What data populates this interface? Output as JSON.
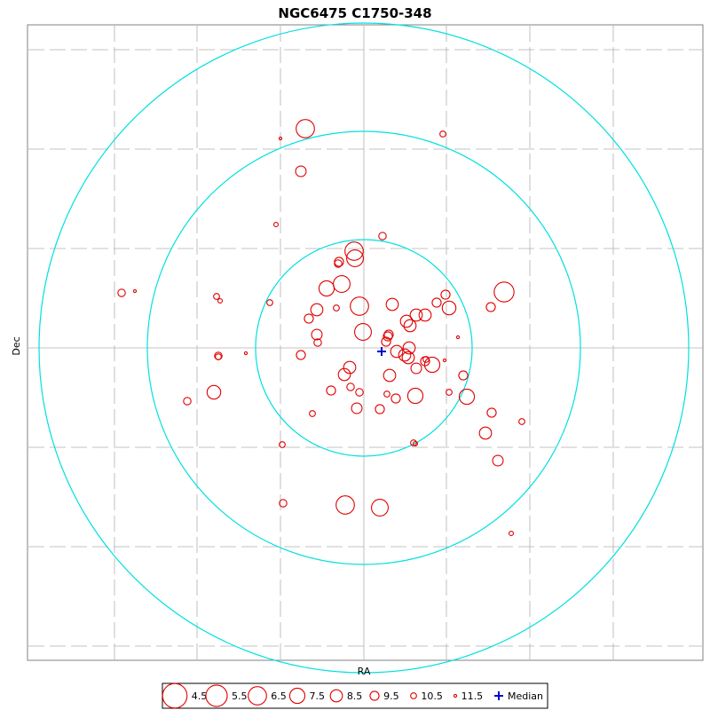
{
  "chart_data": {
    "type": "scatter",
    "title": "NGC6475  C1750-348",
    "xlabel": "RA",
    "ylabel": "Dec",
    "grid": true,
    "legend_placement": "bottom",
    "colors": {
      "stars": "#e00000",
      "rings": "#00e0e0",
      "median": "#0000cc",
      "grid": "#b0b0b0",
      "frame": "#808080"
    },
    "median": {
      "x": 20,
      "y": -4,
      "label": "Median"
    },
    "rings": [
      {
        "name": "",
        "radius": 122
      },
      {
        "name": "",
        "radius": 244
      },
      {
        "name": "",
        "radius": 366
      }
    ],
    "legend": [
      {
        "label": "4.5",
        "mag": 4.5
      },
      {
        "label": "5.5",
        "mag": 5.5
      },
      {
        "label": "6.5",
        "mag": 6.5
      },
      {
        "label": "7.5",
        "mag": 7.5
      },
      {
        "label": "8.5",
        "mag": 8.5
      },
      {
        "label": "9.5",
        "mag": 9.5
      },
      {
        "label": "10.5",
        "mag": 10.5
      },
      {
        "label": "11.5",
        "mag": 11.5
      }
    ],
    "stars": [
      {
        "x": -66,
        "y": 247,
        "mag": 6.5
      },
      {
        "x": -94,
        "y": 236,
        "mag": 11.5
      },
      {
        "x": 89,
        "y": 241,
        "mag": 10.5
      },
      {
        "x": -71,
        "y": 199,
        "mag": 9.0
      },
      {
        "x": -99,
        "y": 139,
        "mag": 11.0
      },
      {
        "x": 21,
        "y": 126,
        "mag": 10.0
      },
      {
        "x": -11,
        "y": 109,
        "mag": 6.5
      },
      {
        "x": -10,
        "y": 101,
        "mag": 7.0
      },
      {
        "x": -28,
        "y": 97,
        "mag": 9.5
      },
      {
        "x": -29,
        "y": 95,
        "mag": 10.0
      },
      {
        "x": 158,
        "y": 63,
        "mag": 6.0
      },
      {
        "x": -273,
        "y": 62,
        "mag": 10.0
      },
      {
        "x": -258,
        "y": 64,
        "mag": 11.5
      },
      {
        "x": -25,
        "y": 72,
        "mag": 7.0
      },
      {
        "x": -42,
        "y": 67,
        "mag": 7.5
      },
      {
        "x": 92,
        "y": 60,
        "mag": 9.5
      },
      {
        "x": -166,
        "y": 58,
        "mag": 10.5
      },
      {
        "x": -162,
        "y": 53,
        "mag": 11.0
      },
      {
        "x": -106,
        "y": 51,
        "mag": 10.5
      },
      {
        "x": 82,
        "y": 51,
        "mag": 9.5
      },
      {
        "x": -5,
        "y": 47,
        "mag": 6.5
      },
      {
        "x": -31,
        "y": 45,
        "mag": 10.5
      },
      {
        "x": 32,
        "y": 49,
        "mag": 8.5
      },
      {
        "x": 96,
        "y": 45,
        "mag": 8.0
      },
      {
        "x": 143,
        "y": 46,
        "mag": 9.5
      },
      {
        "x": -53,
        "y": 43,
        "mag": 8.5
      },
      {
        "x": 59,
        "y": 37,
        "mag": 8.5
      },
      {
        "x": 69,
        "y": 37,
        "mag": 8.5
      },
      {
        "x": -62,
        "y": 33,
        "mag": 9.5
      },
      {
        "x": 48,
        "y": 30,
        "mag": 8.5
      },
      {
        "x": 52,
        "y": 25,
        "mag": 8.5
      },
      {
        "x": -1,
        "y": 18,
        "mag": 7.0
      },
      {
        "x": -53,
        "y": 15,
        "mag": 9.0
      },
      {
        "x": 28,
        "y": 15,
        "mag": 9.5
      },
      {
        "x": 27,
        "y": 13,
        "mag": 9.5
      },
      {
        "x": 106,
        "y": 12,
        "mag": 11.5
      },
      {
        "x": 25,
        "y": 7,
        "mag": 9.5
      },
      {
        "x": -52,
        "y": 6,
        "mag": 10.0
      },
      {
        "x": 51,
        "y": 0,
        "mag": 8.5
      },
      {
        "x": 37,
        "y": -4,
        "mag": 8.5
      },
      {
        "x": -133,
        "y": -6,
        "mag": 11.5
      },
      {
        "x": -71,
        "y": -8,
        "mag": 9.5
      },
      {
        "x": -164,
        "y": -9,
        "mag": 10.0
      },
      {
        "x": -164,
        "y": -10,
        "mag": 10.5
      },
      {
        "x": 46,
        "y": -8,
        "mag": 8.5
      },
      {
        "x": 50,
        "y": -11,
        "mag": 8.5
      },
      {
        "x": 70,
        "y": -13,
        "mag": 10.5
      },
      {
        "x": 91,
        "y": -14,
        "mag": 11.5
      },
      {
        "x": 69,
        "y": -15,
        "mag": 9.5
      },
      {
        "x": 77,
        "y": -19,
        "mag": 7.5
      },
      {
        "x": -16,
        "y": -22,
        "mag": 8.5
      },
      {
        "x": 59,
        "y": -23,
        "mag": 9.0
      },
      {
        "x": -22,
        "y": -30,
        "mag": 8.5
      },
      {
        "x": 29,
        "y": -31,
        "mag": 8.5
      },
      {
        "x": 112,
        "y": -31,
        "mag": 9.5
      },
      {
        "x": -15,
        "y": -44,
        "mag": 10.0
      },
      {
        "x": -37,
        "y": -48,
        "mag": 9.5
      },
      {
        "x": -5,
        "y": -50,
        "mag": 10.0
      },
      {
        "x": 96,
        "y": -50,
        "mag": 10.5
      },
      {
        "x": -169,
        "y": -50,
        "mag": 8.0
      },
      {
        "x": 26,
        "y": -52,
        "mag": 10.5
      },
      {
        "x": 58,
        "y": -54,
        "mag": 7.5
      },
      {
        "x": 116,
        "y": -55,
        "mag": 7.5
      },
      {
        "x": 36,
        "y": -57,
        "mag": 9.5
      },
      {
        "x": -199,
        "y": -60,
        "mag": 10.0
      },
      {
        "x": -8,
        "y": -68,
        "mag": 9.0
      },
      {
        "x": 18,
        "y": -69,
        "mag": 9.5
      },
      {
        "x": 144,
        "y": -73,
        "mag": 9.5
      },
      {
        "x": -58,
        "y": -74,
        "mag": 10.5
      },
      {
        "x": 178,
        "y": -83,
        "mag": 10.5
      },
      {
        "x": 137,
        "y": -96,
        "mag": 8.5
      },
      {
        "x": 56,
        "y": -107,
        "mag": 10.5
      },
      {
        "x": 58,
        "y": -108,
        "mag": 11.0
      },
      {
        "x": -92,
        "y": -109,
        "mag": 10.5
      },
      {
        "x": 151,
        "y": -127,
        "mag": 9.0
      },
      {
        "x": -91,
        "y": -175,
        "mag": 10.0
      },
      {
        "x": -21,
        "y": -177,
        "mag": 6.5
      },
      {
        "x": 18,
        "y": -180,
        "mag": 7.0
      },
      {
        "x": 166,
        "y": -209,
        "mag": 11.0
      }
    ]
  }
}
